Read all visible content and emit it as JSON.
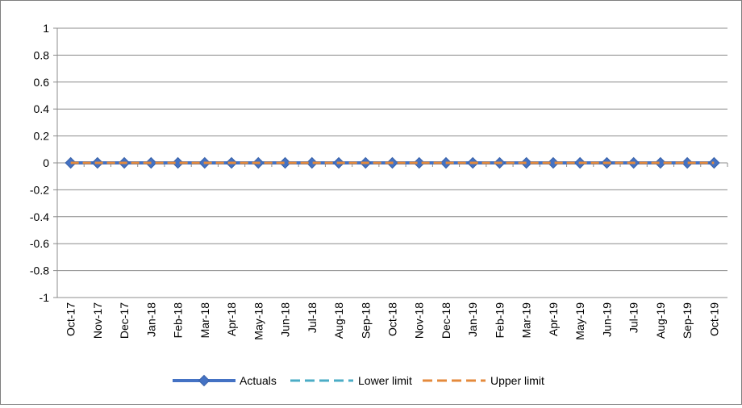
{
  "chart_data": {
    "type": "line",
    "title": "",
    "xlabel": "",
    "ylabel": "",
    "ylim": [
      -1,
      1
    ],
    "yticks": [
      -1,
      -0.8,
      -0.6,
      -0.4,
      -0.2,
      0,
      0.2,
      0.4,
      0.6,
      0.8,
      1
    ],
    "ytick_labels": [
      "-1",
      "-0.8",
      "-0.6",
      "-0.4",
      "-0.2",
      "0",
      "0.2",
      "0.4",
      "0.6",
      "0.8",
      "1"
    ],
    "grid": true,
    "legend_position": "bottom",
    "categories": [
      "Oct-17",
      "Nov-17",
      "Dec-17",
      "Jan-18",
      "Feb-18",
      "Mar-18",
      "Apr-18",
      "May-18",
      "Jun-18",
      "Jul-18",
      "Aug-18",
      "Sep-18",
      "Oct-18",
      "Nov-18",
      "Dec-18",
      "Jan-19",
      "Feb-19",
      "Mar-19",
      "Apr-19",
      "May-19",
      "Jun-19",
      "Jul-19",
      "Aug-19",
      "Sep-19",
      "Oct-19"
    ],
    "series": [
      {
        "name": "Actuals",
        "color": "#4472c4",
        "style": "solid-diamond",
        "values": [
          0,
          0,
          0,
          0,
          0,
          0,
          0,
          0,
          0,
          0,
          0,
          0,
          0,
          0,
          0,
          0,
          0,
          0,
          0,
          0,
          0,
          0,
          0,
          0,
          0
        ]
      },
      {
        "name": "Lower limit",
        "color": "#4bacc6",
        "style": "dashed",
        "values": [
          0,
          0,
          0,
          0,
          0,
          0,
          0,
          0,
          0,
          0,
          0,
          0,
          0,
          0,
          0,
          0,
          0,
          0,
          0,
          0,
          0,
          0,
          0,
          0,
          0
        ]
      },
      {
        "name": "Upper limit",
        "color": "#e48a3c",
        "style": "dashed",
        "values": [
          0,
          0,
          0,
          0,
          0,
          0,
          0,
          0,
          0,
          0,
          0,
          0,
          0,
          0,
          0,
          0,
          0,
          0,
          0,
          0,
          0,
          0,
          0,
          0,
          0
        ]
      }
    ]
  }
}
